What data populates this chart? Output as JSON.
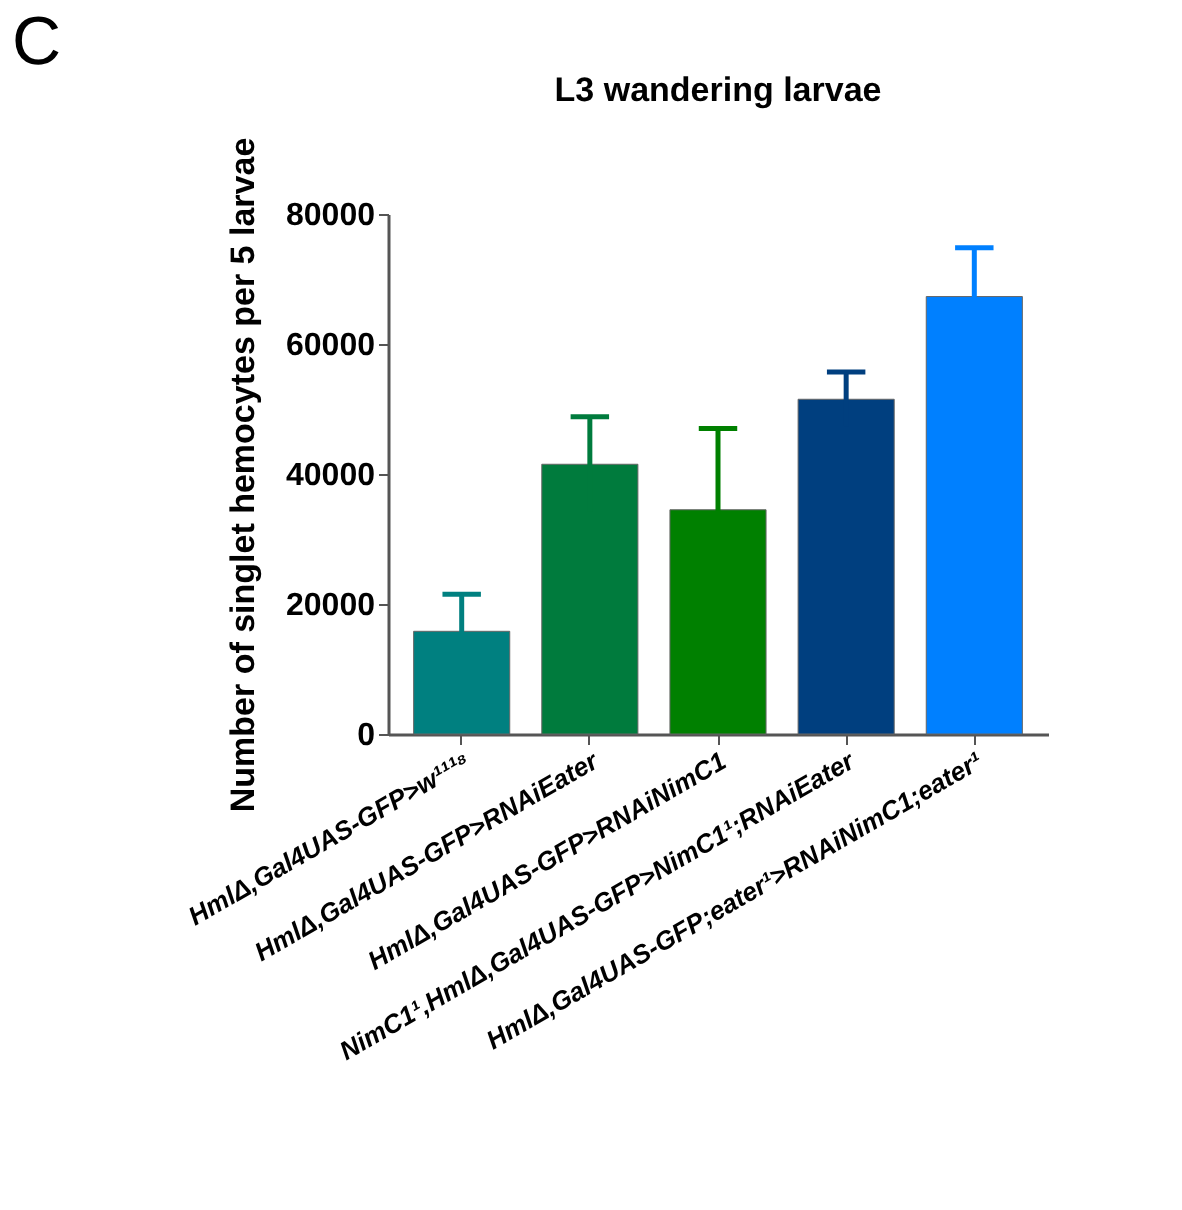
{
  "chart_data": {
    "type": "bar",
    "title": "L3 wandering larvae",
    "ylabel": "Number of singlet hemocytes per 5 larvae",
    "annotations": [
      "C"
    ],
    "categories": [
      "HmlΔ,Gal4UAS-GFP>w¹¹¹⁸",
      "HmlΔ,Gal4UAS-GFP>RNAiEater",
      "HmlΔ,Gal4UAS-GFP>RNAiNimC1",
      "NimC1¹,HmlΔ,Gal4UAS-GFP>NimC1¹;RNAiEater",
      "HmlΔ,Gal4UAS-GFP;eater¹>RNAiNimC1;eater¹"
    ],
    "values": [
      15800,
      41500,
      34500,
      51500,
      67300
    ],
    "errors": [
      5700,
      7300,
      12500,
      4200,
      7500
    ],
    "colors": [
      "#008080",
      "#007b3d",
      "#008000",
      "#003f7f",
      "#0080ff"
    ],
    "ylim": [
      0,
      80000
    ],
    "yticks": [
      0,
      20000,
      40000,
      60000,
      80000
    ],
    "grid": false,
    "legend": false
  }
}
